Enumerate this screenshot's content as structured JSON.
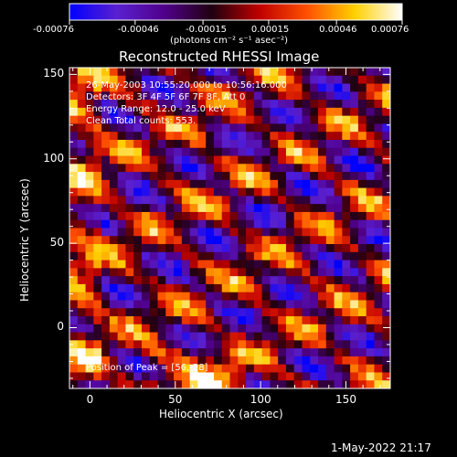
{
  "chart_data": {
    "type": "heatmap",
    "title": "Reconstructed RHESSI Image",
    "xlabel": "Heliocentric X (arcsec)",
    "ylabel": "Heliocentric Y (arcsec)",
    "xlim": [
      -12,
      176
    ],
    "ylim": [
      -36,
      154
    ],
    "x_ticks": [
      0,
      50,
      100,
      150
    ],
    "y_ticks": [
      0,
      50,
      100,
      150
    ],
    "colorbar": {
      "range": [
        -0.00076,
        0.00076
      ],
      "tick_values": [
        -0.00076,
        -0.00046,
        -0.00015,
        0.00015,
        0.00046,
        0.00076
      ],
      "tick_labels": [
        "-0.00076",
        "-0.00046",
        "-0.00015",
        "0.00015",
        "0.00046",
        "0.00076"
      ],
      "units": "(photons cm⁻² s⁻¹ asec⁻²)",
      "colors": [
        "#0000ff",
        "#5a20d0",
        "#50008a",
        "#200010",
        "#c00000",
        "#ff5000",
        "#ffd000",
        "#ffffff"
      ]
    },
    "annotations": [
      "26-May-2003 10:55:20.000 to 10:56:16.000",
      "Detectors: 3F 4F 5F 6F 7F 8F, Att 0",
      "Energy Range: 12.0 - 25.0 keV",
      "Clean     Total counts: 553.",
      "Position of Peak = [56,-28]"
    ],
    "peak_position": [
      56,
      -28
    ]
  },
  "footer_timestamp": "1-May-2022 21:17"
}
